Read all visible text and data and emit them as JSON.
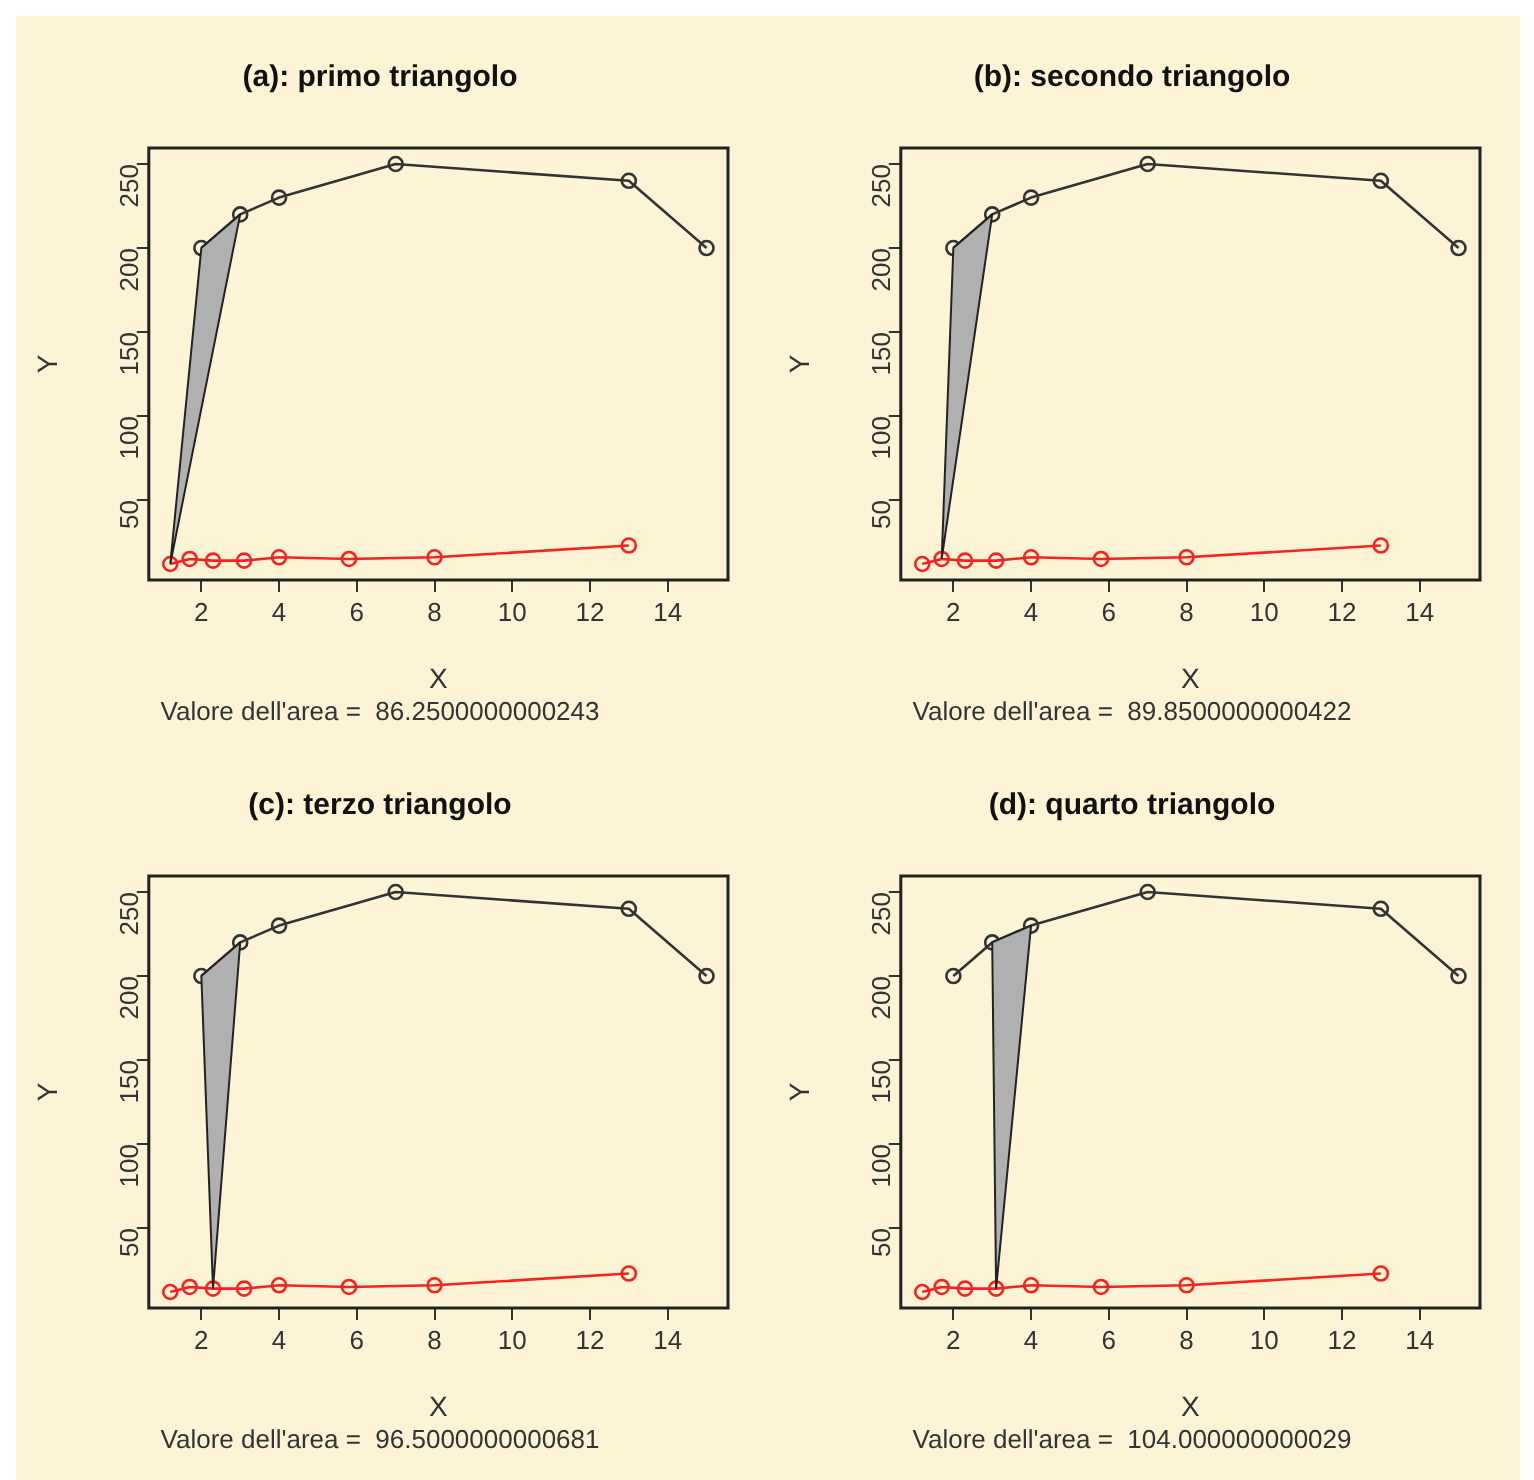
{
  "chart_data": [
    {
      "type": "line",
      "title": "(a): primo triangolo",
      "xlabel": "X",
      "ylabel": "Y",
      "annotations": [
        "Valore dell'area =  86.2500000000243"
      ],
      "xlim": [
        0.648,
        15.552
      ],
      "ylim": [
        2.48,
        259.52
      ],
      "xticks": [
        2,
        4,
        6,
        8,
        10,
        12,
        14
      ],
      "yticks": [
        50,
        100,
        150,
        200,
        250
      ],
      "grid": false,
      "legend": false,
      "marker": "circle",
      "series": [
        {
          "type": "area",
          "color": "#b0b0b0",
          "marker": "none",
          "x": [
            1.2,
            2,
            3
          ],
          "values": [
            12,
            200,
            220
          ]
        },
        {
          "color": "#333333",
          "x": [
            2,
            3,
            4,
            7,
            13,
            15
          ],
          "values": [
            200,
            220,
            230,
            250,
            240,
            200
          ]
        },
        {
          "color": "#ff2020",
          "x": [
            1.2,
            1.7,
            2.3,
            3.1,
            4,
            5.8,
            8,
            13
          ],
          "values": [
            12,
            15,
            14,
            14,
            16,
            15,
            16,
            23
          ]
        }
      ]
    },
    {
      "type": "line",
      "title": "(b): secondo triangolo",
      "xlabel": "X",
      "ylabel": "Y",
      "annotations": [
        "Valore dell'area =  89.8500000000422"
      ],
      "xlim": [
        0.648,
        15.552
      ],
      "ylim": [
        2.48,
        259.52
      ],
      "xticks": [
        2,
        4,
        6,
        8,
        10,
        12,
        14
      ],
      "yticks": [
        50,
        100,
        150,
        200,
        250
      ],
      "grid": false,
      "legend": false,
      "marker": "circle",
      "series": [
        {
          "type": "area",
          "color": "#b0b0b0",
          "marker": "none",
          "x": [
            1.7,
            2,
            3
          ],
          "values": [
            15,
            200,
            220
          ]
        },
        {
          "color": "#333333",
          "x": [
            2,
            3,
            4,
            7,
            13,
            15
          ],
          "values": [
            200,
            220,
            230,
            250,
            240,
            200
          ]
        },
        {
          "color": "#ff2020",
          "x": [
            1.2,
            1.7,
            2.3,
            3.1,
            4,
            5.8,
            8,
            13
          ],
          "values": [
            12,
            15,
            14,
            14,
            16,
            15,
            16,
            23
          ]
        }
      ]
    },
    {
      "type": "line",
      "title": "(c): terzo triangolo",
      "xlabel": "X",
      "ylabel": "Y",
      "annotations": [
        "Valore dell'area =  96.5000000000681"
      ],
      "xlim": [
        0.648,
        15.552
      ],
      "ylim": [
        2.48,
        259.52
      ],
      "xticks": [
        2,
        4,
        6,
        8,
        10,
        12,
        14
      ],
      "yticks": [
        50,
        100,
        150,
        200,
        250
      ],
      "grid": false,
      "legend": false,
      "marker": "circle",
      "series": [
        {
          "type": "area",
          "color": "#b0b0b0",
          "marker": "none",
          "x": [
            2.3,
            2,
            3
          ],
          "values": [
            14,
            200,
            220
          ]
        },
        {
          "color": "#333333",
          "x": [
            2,
            3,
            4,
            7,
            13,
            15
          ],
          "values": [
            200,
            220,
            230,
            250,
            240,
            200
          ]
        },
        {
          "color": "#ff2020",
          "x": [
            1.2,
            1.7,
            2.3,
            3.1,
            4,
            5.8,
            8,
            13
          ],
          "values": [
            12,
            15,
            14,
            14,
            16,
            15,
            16,
            23
          ]
        }
      ]
    },
    {
      "type": "line",
      "title": "(d): quarto triangolo",
      "xlabel": "X",
      "ylabel": "Y",
      "annotations": [
        "Valore dell'area =  104.000000000029"
      ],
      "xlim": [
        0.648,
        15.552
      ],
      "ylim": [
        2.48,
        259.52
      ],
      "xticks": [
        2,
        4,
        6,
        8,
        10,
        12,
        14
      ],
      "yticks": [
        50,
        100,
        150,
        200,
        250
      ],
      "grid": false,
      "legend": false,
      "marker": "circle",
      "series": [
        {
          "type": "area",
          "color": "#b0b0b0",
          "marker": "none",
          "x": [
            3.1,
            3,
            4
          ],
          "values": [
            14,
            220,
            230
          ]
        },
        {
          "color": "#333333",
          "x": [
            2,
            3,
            4,
            7,
            13,
            15
          ],
          "values": [
            200,
            220,
            230,
            250,
            240,
            200
          ]
        },
        {
          "color": "#ff2020",
          "x": [
            1.2,
            1.7,
            2.3,
            3.1,
            4,
            5.8,
            8,
            13
          ],
          "values": [
            12,
            15,
            14,
            14,
            16,
            15,
            16,
            23
          ]
        }
      ]
    }
  ]
}
